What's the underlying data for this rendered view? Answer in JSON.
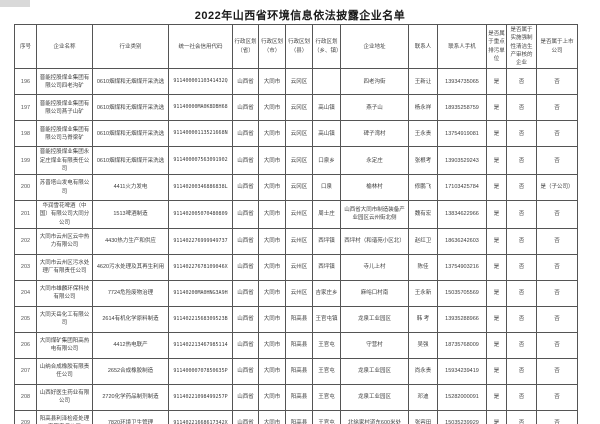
{
  "page": {
    "title": "2022年山西省环境信息依法披露企业名单"
  },
  "table": {
    "columns": [
      {
        "key": "index",
        "label": "序号",
        "width": 22
      },
      {
        "key": "name",
        "label": "企业名称",
        "width": 56
      },
      {
        "key": "industry",
        "label": "行业类别",
        "width": 76
      },
      {
        "key": "code",
        "label": "统一社会信用代码",
        "width": 64
      },
      {
        "key": "province",
        "label": "行政区划（省）",
        "width": 26
      },
      {
        "key": "city",
        "label": "行政区划（市）",
        "width": 27
      },
      {
        "key": "county",
        "label": "行政区划（县）",
        "width": 27
      },
      {
        "key": "town",
        "label": "行政区划（乡、镇）",
        "width": 28
      },
      {
        "key": "address",
        "label": "企业地址",
        "width": 68
      },
      {
        "key": "contact",
        "label": "联系人",
        "width": 29
      },
      {
        "key": "phone",
        "label": "联系人手机",
        "width": 49
      },
      {
        "key": "key_polluter",
        "label": "是否属于重点排污单位",
        "width": 20
      },
      {
        "key": "cleaner_audit",
        "label": "是否属于实施强制性清洁生产审核的企业",
        "width": 30
      },
      {
        "key": "listed_company",
        "label": "是否属于上市公司",
        "width": 41
      }
    ],
    "rows": [
      [
        "196",
        "晋能控股煤业集团有限公司四老沟矿",
        "0610烟煤和无烟煤开采洗选",
        "91140000110341432Q",
        "山西省",
        "大同市",
        "云冈区",
        "",
        "四老沟街",
        "王新让",
        "13934735065",
        "是",
        "否",
        "否"
      ],
      [
        "197",
        "晋能控股煤业集团有限公司燕子山矿",
        "0610烟煤和无烟煤开采洗选",
        "91140000MA0K8DBH68",
        "山西省",
        "大同市",
        "云冈区",
        "高山镇",
        "燕子山",
        "杨永祥",
        "18935258759",
        "是",
        "否",
        "否"
      ],
      [
        "198",
        "晋能控股煤业集团有限公司马脊梁矿",
        "0610烟煤和无烟煤开采洗选",
        "91140000113521668N",
        "山西省",
        "大同市",
        "云冈区",
        "高山镇",
        "碑子湾村",
        "王永贵",
        "13754919081",
        "是",
        "否",
        "否"
      ],
      [
        "199",
        "晋能控股煤业集团永定庄煤业有限责任公司",
        "0610烟煤和无烟煤开采洗选",
        "911400007563091902",
        "山西省",
        "大同市",
        "云冈区",
        "口泉乡",
        "永定庄",
        "张根考",
        "13903529243",
        "是",
        "否",
        "否"
      ],
      [
        "200",
        "苏晋塔山发电有限公司",
        "4411火力发电",
        "91140200346886838L",
        "山西省",
        "大同市",
        "云冈区",
        "口泉",
        "榆林村",
        "修鹏飞",
        "17103425784",
        "是",
        "否",
        "是（子公司）"
      ],
      [
        "201",
        "华润雪花啤酒（中国）有限公司大同分公司",
        "1513啤酒制造",
        "911402005070480809",
        "山西省",
        "大同市",
        "云州区",
        "周士庄",
        "山西省大同市制造装备产业园区云州街北侧",
        "魏有宏",
        "13834622966",
        "是",
        "否",
        "否"
      ],
      [
        "202",
        "大同市云州区云中热力有限公司",
        "4430热力生产和供应",
        "911402276999949737",
        "山西省",
        "大同市",
        "云州区",
        "西坪镇",
        "西坪村（和谐苑小区北）",
        "赵红卫",
        "18636242603",
        "是",
        "否",
        "否"
      ],
      [
        "203",
        "大同市云州区污水处理厂有限责任公司",
        "4620污水处理及其再生利用",
        "91140227678109046X",
        "山西省",
        "大同市",
        "云州区",
        "西坪镇",
        "寺儿上村",
        "陈佳",
        "13754903216",
        "是",
        "否",
        "否"
      ],
      [
        "204",
        "大同市雄麟环保科技有限公司",
        "7724危险废物治理",
        "91140200MA0HNG3A9H",
        "山西省",
        "大同市",
        "云州区",
        "吉家庄乡",
        "麻峪口村南",
        "王永新",
        "15035705569",
        "是",
        "否",
        "否"
      ],
      [
        "205",
        "大同天岳化工有限公司",
        "2614有机化学原料制造",
        "91140221568309523B",
        "山西省",
        "大同市",
        "阳高县",
        "王官屯镇",
        "龙泉工业园区",
        "韩 考",
        "13935288966",
        "是",
        "否",
        "否"
      ],
      [
        "206",
        "大同煤矿集团阳高热电有限公司",
        "4412热电联产",
        "911402213467985114",
        "山西省",
        "大同市",
        "阳高县",
        "王官屯",
        "守营村",
        "吴强",
        "18735768009",
        "是",
        "否",
        "否"
      ],
      [
        "207",
        "山纳合成橡胶有限责任公司",
        "2652合成橡胶制造",
        "91140000707850635P",
        "山西省",
        "大同市",
        "阳高县",
        "王官屯",
        "龙泉工业园区",
        "尚永贵",
        "15934239419",
        "是",
        "否",
        "否"
      ],
      [
        "208",
        "山西好医生药业有限公司",
        "2720化学药品制剂制造",
        "91140221098499257P",
        "山西省",
        "大同市",
        "阳高县",
        "王官屯",
        "龙泉工业园区",
        "邓迪",
        "15282000091",
        "是",
        "否",
        "否"
      ],
      [
        "209",
        "阳高县利泽检疫处理有限责任公司",
        "7820环境卫生管理",
        "91140221668617342X",
        "山西省",
        "大同市",
        "阳高县",
        "王官屯",
        "北徐家村道东600米处",
        "张容田",
        "15035239929",
        "是",
        "否",
        "否"
      ]
    ]
  }
}
